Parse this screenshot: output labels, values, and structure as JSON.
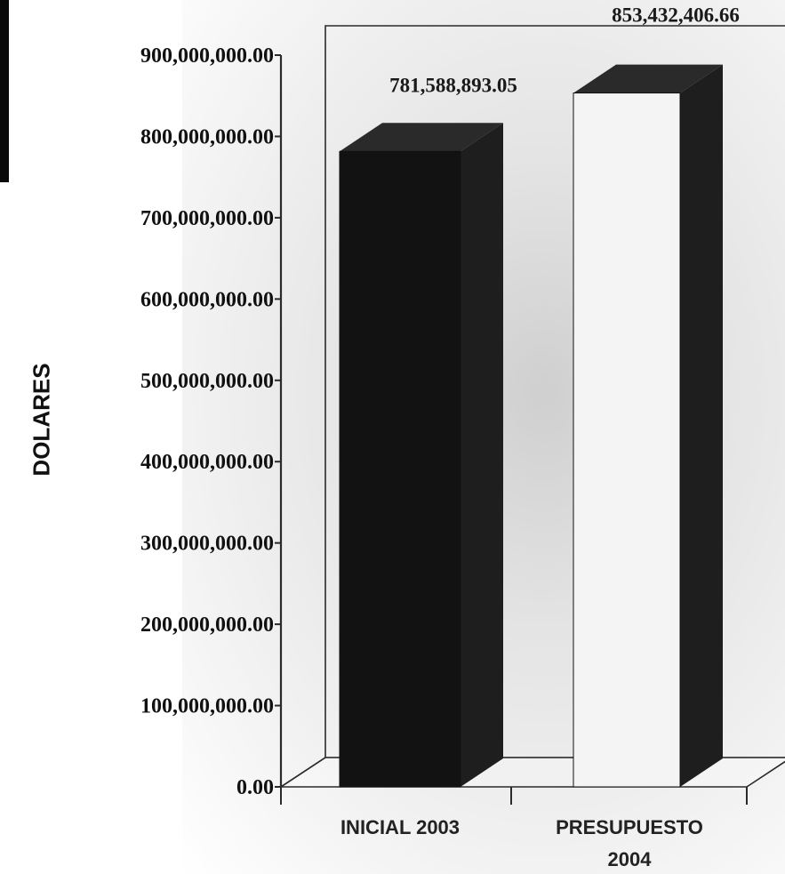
{
  "chart_data": {
    "type": "bar",
    "categories": [
      "INICIAL 2003",
      "PRESUPUESTO 2004"
    ],
    "values": [
      781588893.05,
      853432406.66
    ],
    "data_labels": [
      "781,588,893.05",
      "853,432,406.66"
    ],
    "ylabel": "DOLARES",
    "ylim": [
      0,
      900000000
    ],
    "yticks": [
      0,
      100000000,
      200000000,
      300000000,
      400000000,
      500000000,
      600000000,
      700000000,
      800000000,
      900000000
    ],
    "ytick_labels": [
      "0.00",
      "100,000,000.00",
      "200,000,000.00",
      "300,000,000.00",
      "400,000,000.00",
      "500,000,000.00",
      "600,000,000.00",
      "700,000,000.00",
      "800,000,000.00",
      "900,000,000.00"
    ],
    "style": "3d",
    "grid": false,
    "legend": "none"
  },
  "colors": {
    "bar_dark": "#121212",
    "bar_side": "#1e1e1e",
    "bar_light_front": "#f4f4f4",
    "axis": "#2a2a2a",
    "background_wash": "#dcdcdc"
  }
}
